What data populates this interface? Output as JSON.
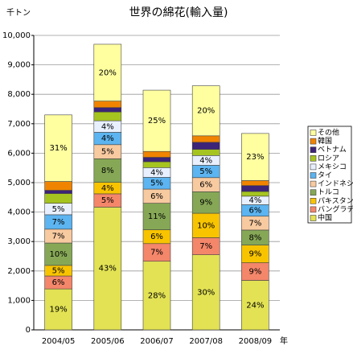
{
  "chart_data": {
    "type": "stacked-bar",
    "title": "世界の綿花(輸入量)",
    "y_unit": "千トン",
    "x_unit": "年",
    "categories": [
      "2004/05",
      "2005/06",
      "2006/07",
      "2007/08",
      "2008/09"
    ],
    "ylim": [
      0,
      10000
    ],
    "yticks": [
      0,
      {
        "value": 1000,
        "label": "1,000"
      },
      {
        "value": 2000,
        "label": "2,000"
      },
      {
        "value": 3000,
        "label": "3,000"
      },
      {
        "value": 4000,
        "label": "4,000"
      },
      {
        "value": 5000,
        "label": "5,000"
      },
      {
        "value": 6000,
        "label": "6,000"
      },
      {
        "value": 7000,
        "label": "7,000"
      },
      {
        "value": 8000,
        "label": "8,000"
      },
      {
        "value": 9000,
        "label": "9,000"
      },
      {
        "value": 10000,
        "label": "10,000"
      }
    ],
    "grid": true,
    "legend": "right",
    "series": [
      {
        "name": "中国",
        "color": "#e2e254",
        "values": [
          1390,
          4170,
          2330,
          2550,
          1680
        ],
        "value_labels": [
          "19%",
          "43%",
          "28%",
          "30%",
          "24%"
        ]
      },
      {
        "name": "バングラデシュ",
        "color": "#f4866a",
        "values": [
          440,
          450,
          600,
          580,
          600
        ],
        "value_labels": [
          "6%",
          "5%",
          "7%",
          "7%",
          "9%"
        ]
      },
      {
        "name": "パキスタン",
        "color": "#f8c400",
        "values": [
          360,
          390,
          470,
          830,
          600
        ],
        "value_labels": [
          "5%",
          "4%",
          "6%",
          "10%",
          "9%"
        ]
      },
      {
        "name": "トルコ",
        "color": "#86a856",
        "values": [
          760,
          800,
          900,
          730,
          510
        ],
        "value_labels": [
          "10%",
          "8%",
          "11%",
          "9%",
          "8%"
        ]
      },
      {
        "name": "インドネシア",
        "color": "#f8caa0",
        "values": [
          470,
          480,
          480,
          480,
          470
        ],
        "value_labels": [
          "7%",
          "5%",
          "6%",
          "6%",
          "7%"
        ]
      },
      {
        "name": "タイ",
        "color": "#5cb4f0",
        "values": [
          490,
          420,
          400,
          420,
          390
        ],
        "value_labels": [
          "7%",
          "4%",
          "5%",
          "5%",
          "6%"
        ]
      },
      {
        "name": "メキシコ",
        "color": "#e8f0ff",
        "values": [
          390,
          390,
          330,
          330,
          290
        ],
        "value_labels": [
          "5%",
          "4%",
          "4%",
          "4%",
          "4%"
        ]
      },
      {
        "name": "ロシア",
        "color": "#a6c420",
        "values": [
          330,
          300,
          200,
          210,
          160
        ]
      },
      {
        "name": "ベトナム",
        "color": "#3c2478",
        "values": [
          110,
          150,
          150,
          240,
          200
        ]
      },
      {
        "name": "韓国",
        "color": "#f08400",
        "values": [
          300,
          220,
          200,
          220,
          170
        ]
      },
      {
        "name": "その他",
        "color": "#ffffa0",
        "values": [
          2260,
          1930,
          2080,
          1700,
          1600
        ],
        "value_labels": [
          "31%",
          "20%",
          "25%",
          "20%",
          "23%"
        ]
      }
    ]
  }
}
